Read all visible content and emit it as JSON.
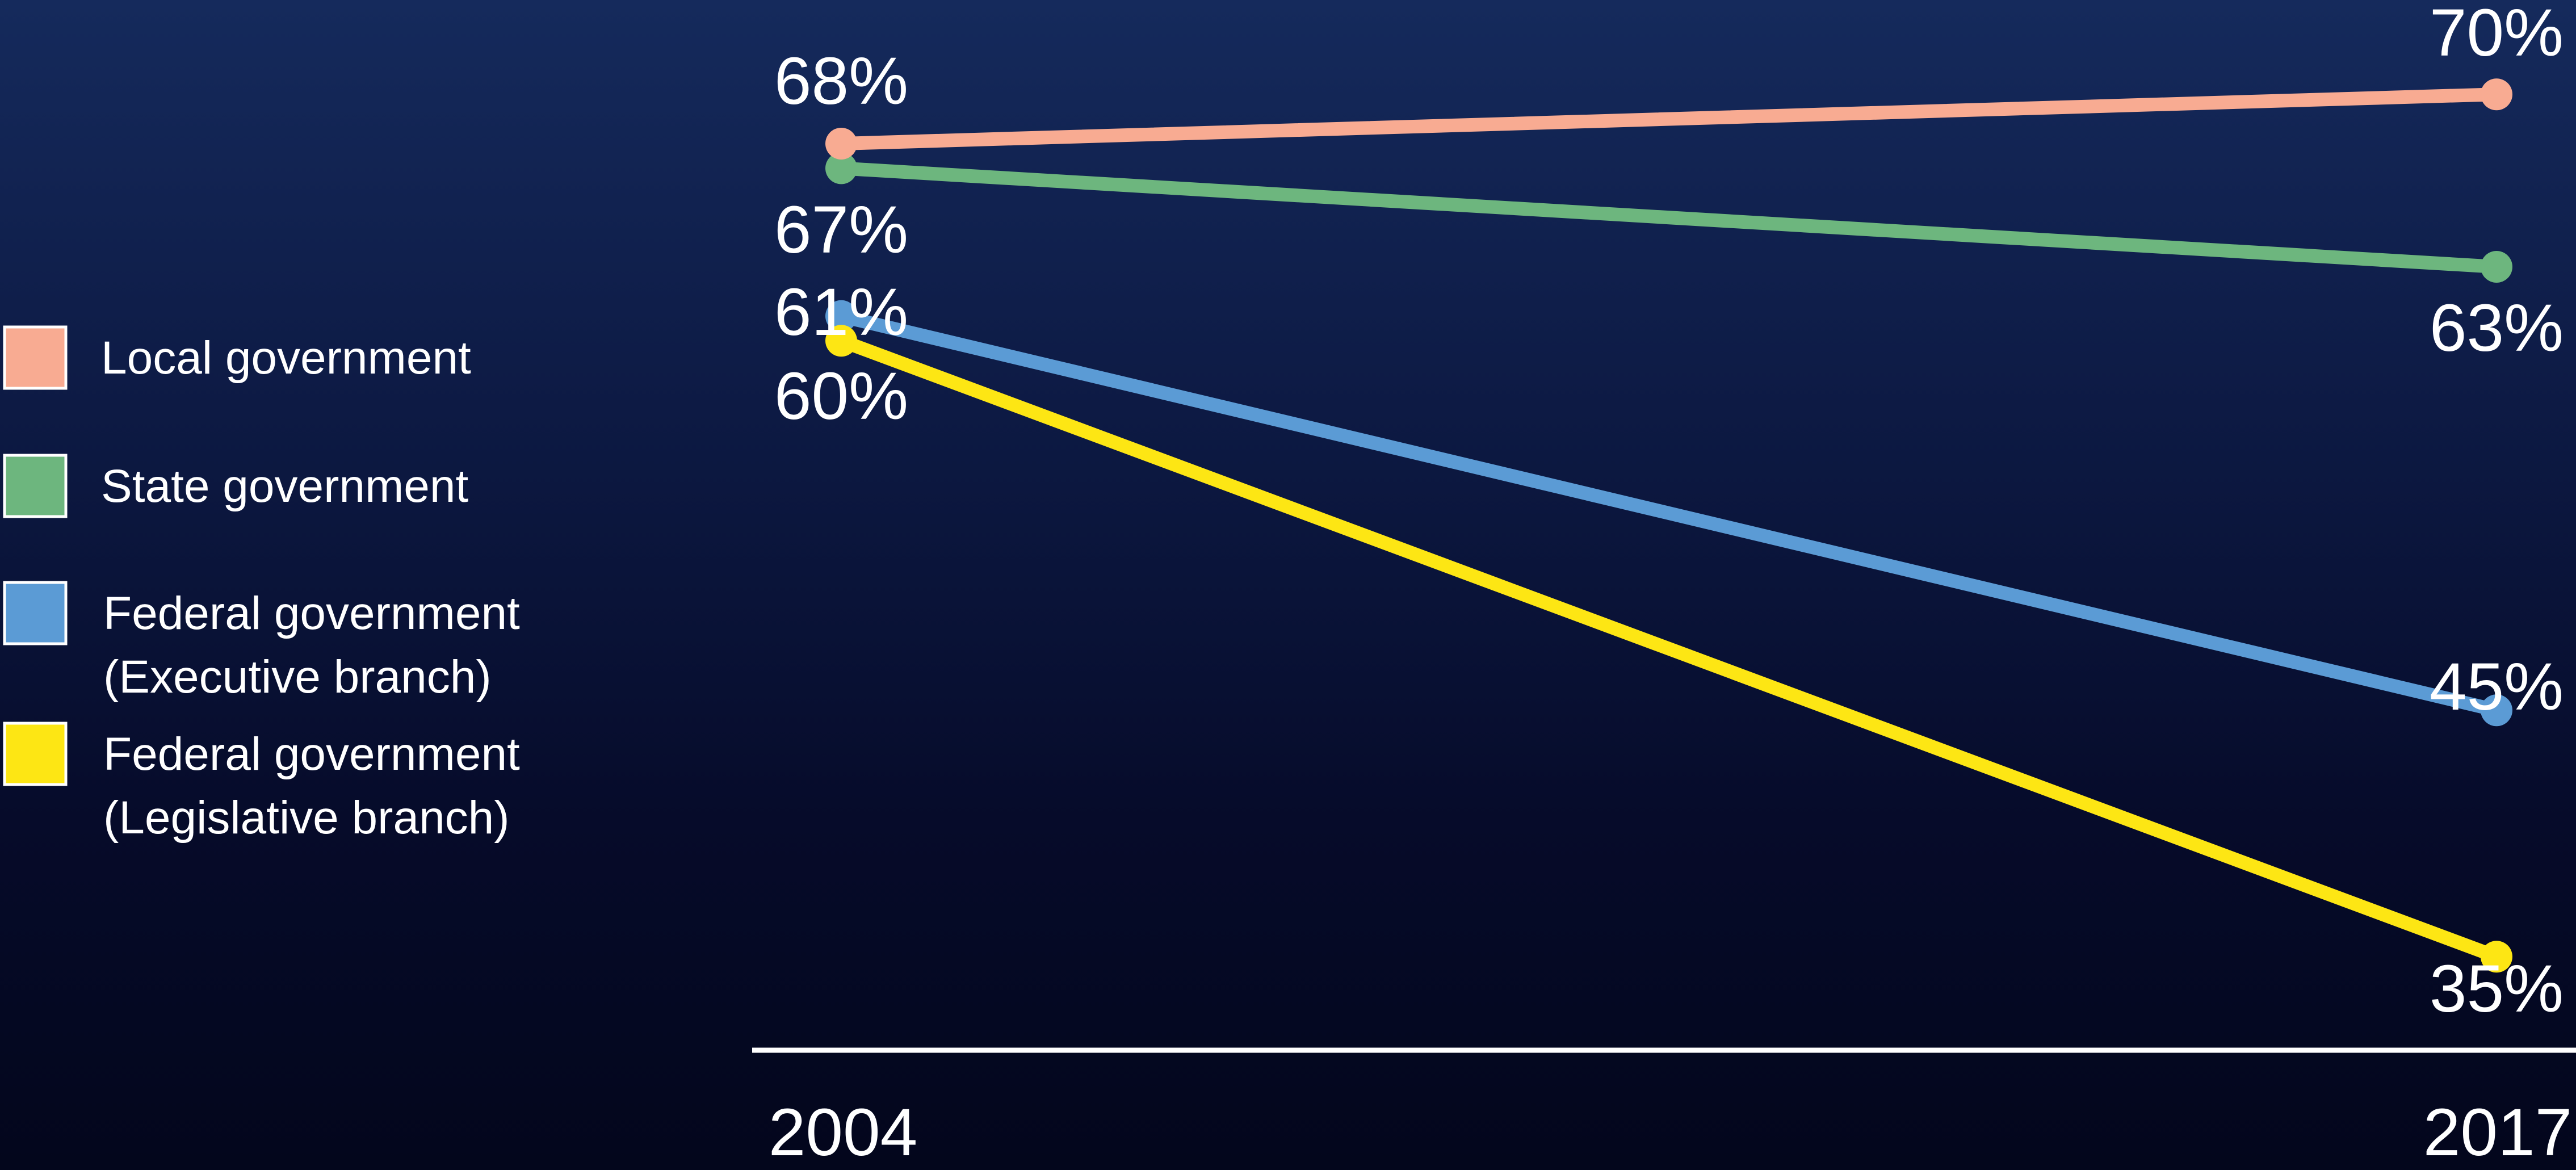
{
  "chart_data": {
    "type": "line",
    "title": "",
    "xlabel": "",
    "ylabel": "",
    "categories": [
      "2004",
      "2017"
    ],
    "legend_position": "left",
    "grid": false,
    "series": [
      {
        "key": "local",
        "name": "Local government",
        "name_lines": [
          "Local government"
        ],
        "color": "#f8ab92",
        "values": [
          68,
          70
        ],
        "labels": [
          "68%",
          "70%"
        ]
      },
      {
        "key": "state",
        "name": "State government",
        "name_lines": [
          "State government"
        ],
        "color": "#6db67e",
        "values": [
          67,
          63
        ],
        "labels": [
          "67%",
          "63%"
        ]
      },
      {
        "key": "executive",
        "name": "Federal government (Executive branch)",
        "name_lines": [
          "Federal government",
          "(Executive branch)"
        ],
        "color": "#5b9bd5",
        "values": [
          61,
          45
        ],
        "labels": [
          "61%",
          "45%"
        ]
      },
      {
        "key": "legislative",
        "name": "Federal government (Legislative branch)",
        "name_lines": [
          "Federal government",
          "(Legislative branch)"
        ],
        "color": "#fde614",
        "values": [
          60,
          35
        ],
        "labels": [
          "60%",
          "35%"
        ]
      }
    ]
  }
}
